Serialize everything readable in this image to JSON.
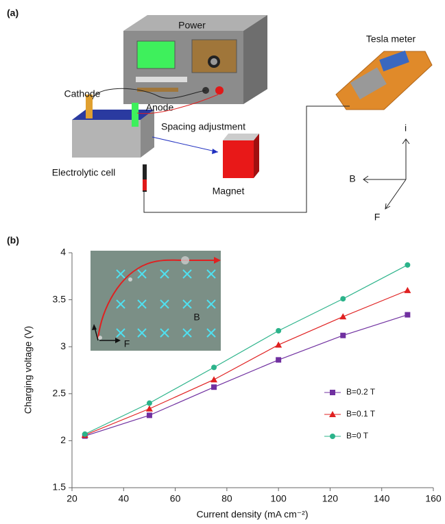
{
  "panel_labels": [
    "(a)",
    "(b)"
  ],
  "diagram": {
    "power": "Power",
    "tesla_meter": "Tesla meter",
    "cathode": "Cathode",
    "anode": "Anode",
    "spacing": "Spacing adjustment",
    "cell": "Electrolytic cell",
    "magnet": "Magnet",
    "axis_i": "i",
    "axis_b": "B",
    "axis_f": "F"
  },
  "chart_data": {
    "type": "line",
    "xlabel": "Current density (mA cm⁻²)",
    "ylabel": "Charging voltage (V)",
    "x": [
      25,
      50,
      75,
      100,
      125,
      150
    ],
    "series": [
      {
        "name": "B=0.2 T",
        "color": "#7030a0",
        "marker": "square",
        "values": [
          2.05,
          2.27,
          2.57,
          2.86,
          3.12,
          3.34
        ]
      },
      {
        "name": "B=0.1 T",
        "color": "#e02020",
        "marker": "triangle",
        "values": [
          2.06,
          2.34,
          2.65,
          3.02,
          3.32,
          3.6
        ]
      },
      {
        "name": "B=0 T",
        "color": "#2bb38a",
        "marker": "circle",
        "values": [
          2.07,
          2.4,
          2.78,
          3.17,
          3.51,
          3.87
        ]
      }
    ],
    "xlim": [
      20,
      160
    ],
    "xticks": [
      20,
      40,
      60,
      80,
      100,
      120,
      140,
      160
    ],
    "ylim": [
      1.5,
      4
    ],
    "yticks": [
      1.5,
      2,
      2.5,
      3,
      3.5,
      4
    ],
    "grid": false,
    "legend": "right",
    "annotations": [
      "B",
      "F"
    ]
  }
}
